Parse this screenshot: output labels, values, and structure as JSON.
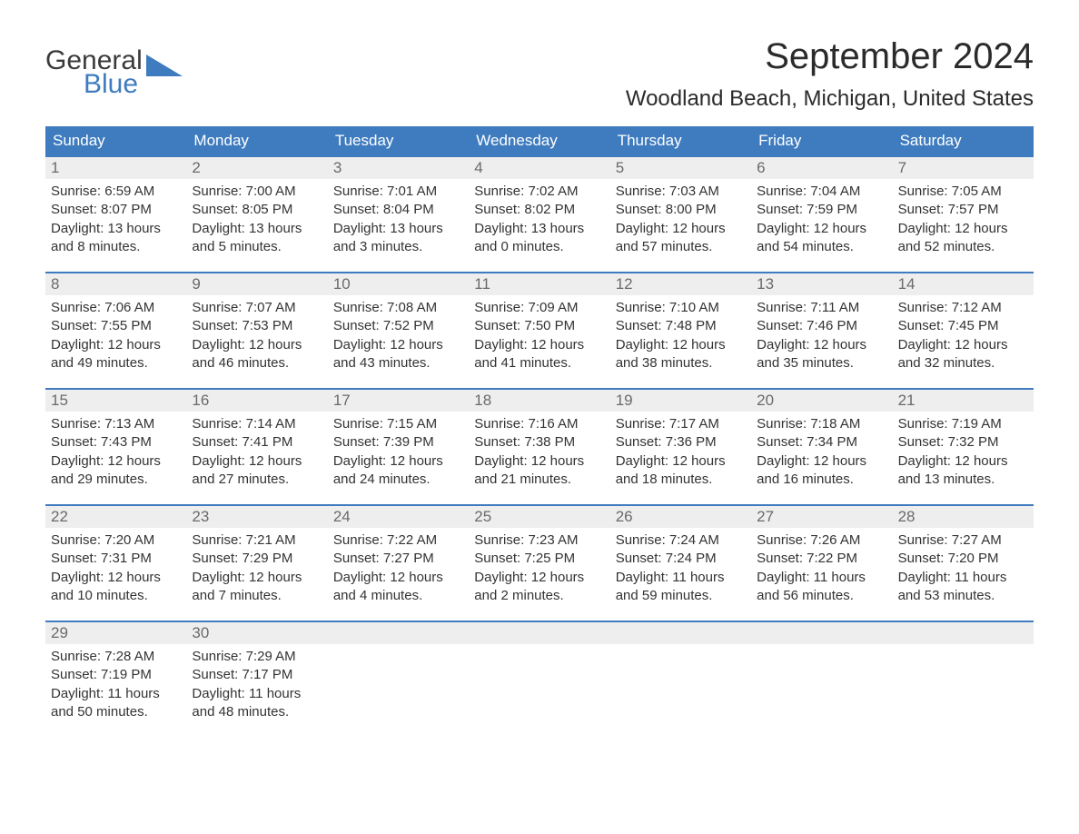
{
  "logo": {
    "part1": "General",
    "part2": "Blue"
  },
  "title": "September 2024",
  "location": "Woodland Beach, Michigan, United States",
  "colors": {
    "header_bg": "#3f7cbf",
    "header_fg": "#ffffff",
    "daynum_bg": "#eeeeee",
    "border": "#3f7cbf",
    "text": "#333333"
  },
  "days_of_week": [
    "Sunday",
    "Monday",
    "Tuesday",
    "Wednesday",
    "Thursday",
    "Friday",
    "Saturday"
  ],
  "weeks": [
    [
      {
        "n": "1",
        "sunrise": "Sunrise: 6:59 AM",
        "sunset": "Sunset: 8:07 PM",
        "day": "Daylight: 13 hours and 8 minutes."
      },
      {
        "n": "2",
        "sunrise": "Sunrise: 7:00 AM",
        "sunset": "Sunset: 8:05 PM",
        "day": "Daylight: 13 hours and 5 minutes."
      },
      {
        "n": "3",
        "sunrise": "Sunrise: 7:01 AM",
        "sunset": "Sunset: 8:04 PM",
        "day": "Daylight: 13 hours and 3 minutes."
      },
      {
        "n": "4",
        "sunrise": "Sunrise: 7:02 AM",
        "sunset": "Sunset: 8:02 PM",
        "day": "Daylight: 13 hours and 0 minutes."
      },
      {
        "n": "5",
        "sunrise": "Sunrise: 7:03 AM",
        "sunset": "Sunset: 8:00 PM",
        "day": "Daylight: 12 hours and 57 minutes."
      },
      {
        "n": "6",
        "sunrise": "Sunrise: 7:04 AM",
        "sunset": "Sunset: 7:59 PM",
        "day": "Daylight: 12 hours and 54 minutes."
      },
      {
        "n": "7",
        "sunrise": "Sunrise: 7:05 AM",
        "sunset": "Sunset: 7:57 PM",
        "day": "Daylight: 12 hours and 52 minutes."
      }
    ],
    [
      {
        "n": "8",
        "sunrise": "Sunrise: 7:06 AM",
        "sunset": "Sunset: 7:55 PM",
        "day": "Daylight: 12 hours and 49 minutes."
      },
      {
        "n": "9",
        "sunrise": "Sunrise: 7:07 AM",
        "sunset": "Sunset: 7:53 PM",
        "day": "Daylight: 12 hours and 46 minutes."
      },
      {
        "n": "10",
        "sunrise": "Sunrise: 7:08 AM",
        "sunset": "Sunset: 7:52 PM",
        "day": "Daylight: 12 hours and 43 minutes."
      },
      {
        "n": "11",
        "sunrise": "Sunrise: 7:09 AM",
        "sunset": "Sunset: 7:50 PM",
        "day": "Daylight: 12 hours and 41 minutes."
      },
      {
        "n": "12",
        "sunrise": "Sunrise: 7:10 AM",
        "sunset": "Sunset: 7:48 PM",
        "day": "Daylight: 12 hours and 38 minutes."
      },
      {
        "n": "13",
        "sunrise": "Sunrise: 7:11 AM",
        "sunset": "Sunset: 7:46 PM",
        "day": "Daylight: 12 hours and 35 minutes."
      },
      {
        "n": "14",
        "sunrise": "Sunrise: 7:12 AM",
        "sunset": "Sunset: 7:45 PM",
        "day": "Daylight: 12 hours and 32 minutes."
      }
    ],
    [
      {
        "n": "15",
        "sunrise": "Sunrise: 7:13 AM",
        "sunset": "Sunset: 7:43 PM",
        "day": "Daylight: 12 hours and 29 minutes."
      },
      {
        "n": "16",
        "sunrise": "Sunrise: 7:14 AM",
        "sunset": "Sunset: 7:41 PM",
        "day": "Daylight: 12 hours and 27 minutes."
      },
      {
        "n": "17",
        "sunrise": "Sunrise: 7:15 AM",
        "sunset": "Sunset: 7:39 PM",
        "day": "Daylight: 12 hours and 24 minutes."
      },
      {
        "n": "18",
        "sunrise": "Sunrise: 7:16 AM",
        "sunset": "Sunset: 7:38 PM",
        "day": "Daylight: 12 hours and 21 minutes."
      },
      {
        "n": "19",
        "sunrise": "Sunrise: 7:17 AM",
        "sunset": "Sunset: 7:36 PM",
        "day": "Daylight: 12 hours and 18 minutes."
      },
      {
        "n": "20",
        "sunrise": "Sunrise: 7:18 AM",
        "sunset": "Sunset: 7:34 PM",
        "day": "Daylight: 12 hours and 16 minutes."
      },
      {
        "n": "21",
        "sunrise": "Sunrise: 7:19 AM",
        "sunset": "Sunset: 7:32 PM",
        "day": "Daylight: 12 hours and 13 minutes."
      }
    ],
    [
      {
        "n": "22",
        "sunrise": "Sunrise: 7:20 AM",
        "sunset": "Sunset: 7:31 PM",
        "day": "Daylight: 12 hours and 10 minutes."
      },
      {
        "n": "23",
        "sunrise": "Sunrise: 7:21 AM",
        "sunset": "Sunset: 7:29 PM",
        "day": "Daylight: 12 hours and 7 minutes."
      },
      {
        "n": "24",
        "sunrise": "Sunrise: 7:22 AM",
        "sunset": "Sunset: 7:27 PM",
        "day": "Daylight: 12 hours and 4 minutes."
      },
      {
        "n": "25",
        "sunrise": "Sunrise: 7:23 AM",
        "sunset": "Sunset: 7:25 PM",
        "day": "Daylight: 12 hours and 2 minutes."
      },
      {
        "n": "26",
        "sunrise": "Sunrise: 7:24 AM",
        "sunset": "Sunset: 7:24 PM",
        "day": "Daylight: 11 hours and 59 minutes."
      },
      {
        "n": "27",
        "sunrise": "Sunrise: 7:26 AM",
        "sunset": "Sunset: 7:22 PM",
        "day": "Daylight: 11 hours and 56 minutes."
      },
      {
        "n": "28",
        "sunrise": "Sunrise: 7:27 AM",
        "sunset": "Sunset: 7:20 PM",
        "day": "Daylight: 11 hours and 53 minutes."
      }
    ],
    [
      {
        "n": "29",
        "sunrise": "Sunrise: 7:28 AM",
        "sunset": "Sunset: 7:19 PM",
        "day": "Daylight: 11 hours and 50 minutes."
      },
      {
        "n": "30",
        "sunrise": "Sunrise: 7:29 AM",
        "sunset": "Sunset: 7:17 PM",
        "day": "Daylight: 11 hours and 48 minutes."
      },
      {
        "empty": true
      },
      {
        "empty": true
      },
      {
        "empty": true
      },
      {
        "empty": true
      },
      {
        "empty": true
      }
    ]
  ]
}
